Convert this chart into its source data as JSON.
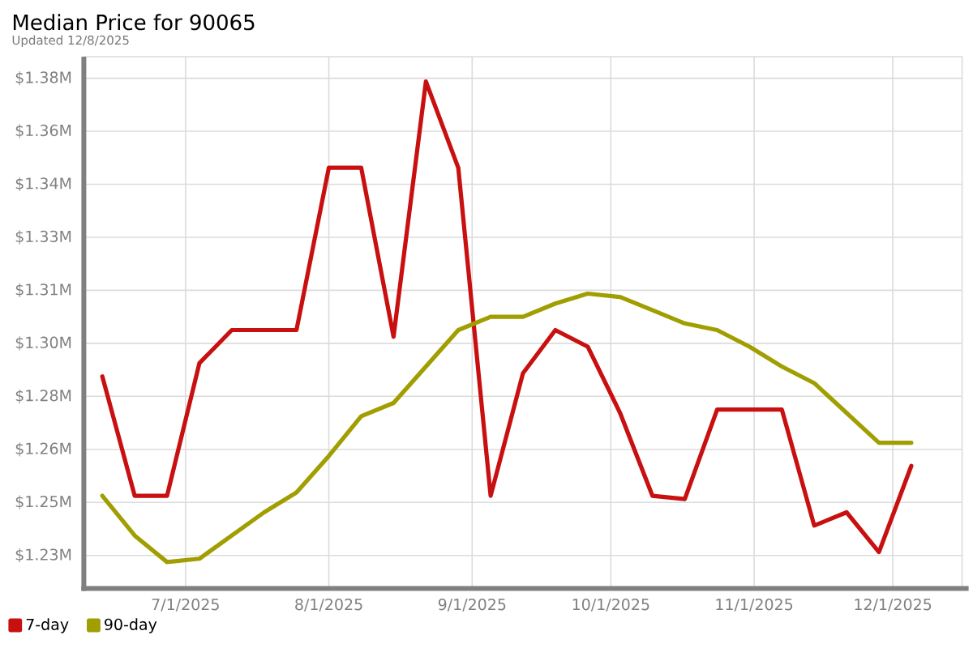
{
  "chart_data": {
    "type": "line",
    "title": "Median Price for 90065",
    "subtitle": "Updated 12/8/2025",
    "x": [
      "2025-06-13",
      "2025-06-20",
      "2025-06-27",
      "2025-07-04",
      "2025-07-11",
      "2025-07-18",
      "2025-07-25",
      "2025-08-01",
      "2025-08-08",
      "2025-08-15",
      "2025-08-22",
      "2025-08-29",
      "2025-09-05",
      "2025-09-12",
      "2025-09-19",
      "2025-09-26",
      "2025-10-03",
      "2025-10-10",
      "2025-10-17",
      "2025-10-24",
      "2025-10-31",
      "2025-11-07",
      "2025-11-14",
      "2025-11-21",
      "2025-11-28",
      "2025-12-05"
    ],
    "series": [
      {
        "name": "7-day",
        "color": "#c81010",
        "values": [
          1.286,
          1.25,
          1.25,
          1.29,
          1.3,
          1.3,
          1.3,
          1.349,
          1.349,
          1.298,
          1.375,
          1.349,
          1.25,
          1.287,
          1.3,
          1.295,
          1.275,
          1.25,
          1.249,
          1.276,
          1.276,
          1.276,
          1.241,
          1.245,
          1.233,
          1.259
        ]
      },
      {
        "name": "90-day",
        "color": "#a09e00",
        "values": [
          1.25,
          1.238,
          1.23,
          1.231,
          1.238,
          1.245,
          1.251,
          1.262,
          1.274,
          1.278,
          1.289,
          1.3,
          1.304,
          1.304,
          1.308,
          1.311,
          1.31,
          1.306,
          1.302,
          1.3,
          1.295,
          1.289,
          1.284,
          1.275,
          1.266,
          1.266
        ]
      }
    ],
    "xlim": [
      "2025-06-09",
      "2025-12-16"
    ],
    "xticks": [
      {
        "value": "2025-07-01",
        "label": "7/1/2025"
      },
      {
        "value": "2025-08-01",
        "label": "8/1/2025"
      },
      {
        "value": "2025-09-01",
        "label": "9/1/2025"
      },
      {
        "value": "2025-10-01",
        "label": "10/1/2025"
      },
      {
        "value": "2025-11-01",
        "label": "11/1/2025"
      },
      {
        "value": "2025-12-01",
        "label": "12/1/2025"
      }
    ],
    "ylim": [
      1.222,
      1.3825
    ],
    "yticks": [
      {
        "value": 1.232,
        "label": "$1.23M"
      },
      {
        "value": 1.248,
        "label": "$1.25M"
      },
      {
        "value": 1.264,
        "label": "$1.26M"
      },
      {
        "value": 1.28,
        "label": "$1.28M"
      },
      {
        "value": 1.296,
        "label": "$1.30M"
      },
      {
        "value": 1.312,
        "label": "$1.31M"
      },
      {
        "value": 1.328,
        "label": "$1.33M"
      },
      {
        "value": 1.344,
        "label": "$1.34M"
      },
      {
        "value": 1.36,
        "label": "$1.36M"
      },
      {
        "value": 1.376,
        "label": "$1.38M"
      }
    ],
    "grid": true,
    "legend": "bottom",
    "marker": "none",
    "line_style": "solid"
  }
}
